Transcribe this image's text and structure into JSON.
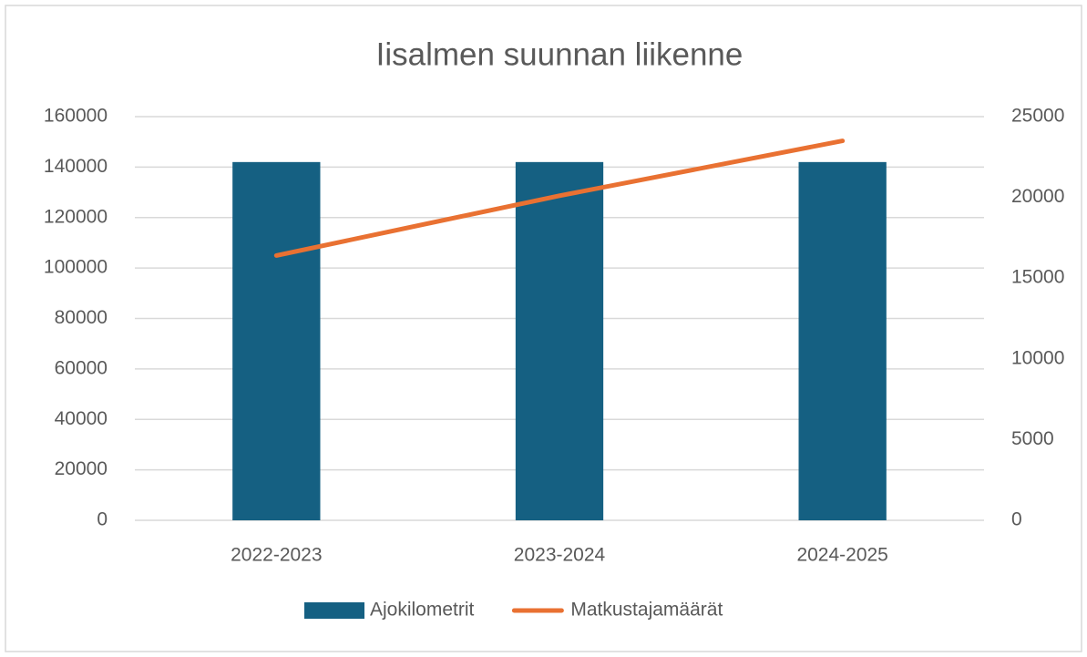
{
  "chart_data": {
    "type": "bar",
    "title": "Iisalmen suunnan liikenne",
    "categories": [
      "2022-2023",
      "2023-2024",
      "2024-2025"
    ],
    "series": [
      {
        "name": "Ajokilometrit",
        "color": "#156082",
        "type": "bar",
        "values": [
          142000,
          142000,
          142000
        ]
      },
      {
        "name": "Matkustajamäärät",
        "color": "#e97132",
        "type": "line",
        "axis": "y2",
        "values": [
          16400,
          20100,
          23500
        ]
      }
    ],
    "ylim": [
      0,
      160000
    ],
    "yticks": [
      0,
      20000,
      40000,
      60000,
      80000,
      100000,
      120000,
      140000,
      160000
    ],
    "y2lim": [
      0,
      25000
    ],
    "y2ticks": [
      0,
      5000,
      10000,
      15000,
      20000,
      25000
    ],
    "grid": true,
    "legend": "bottom"
  }
}
